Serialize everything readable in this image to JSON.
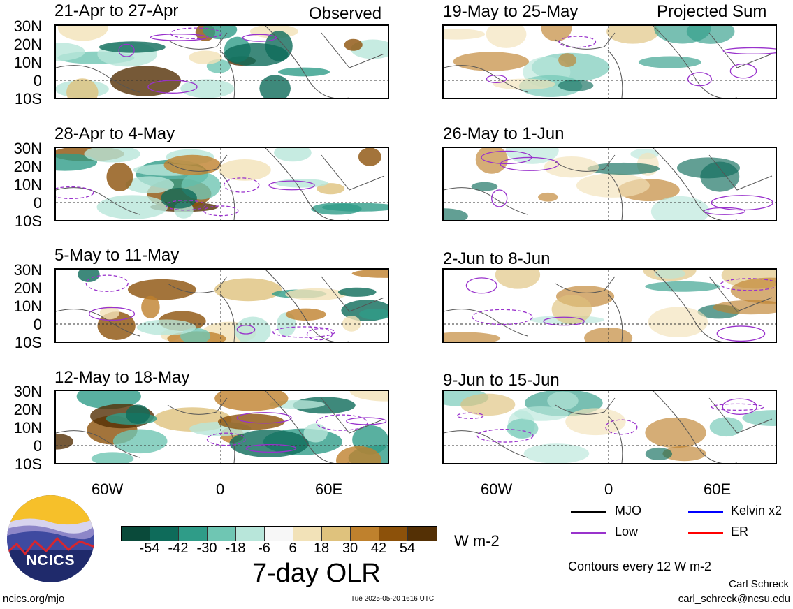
{
  "corner_left": "Observed",
  "corner_right": "Projected Sum",
  "left_panels": [
    "21-Apr to 27-Apr",
    "28-Apr to 4-May",
    "5-May to 11-May",
    "12-May to 18-May"
  ],
  "right_panels": [
    "19-May to 25-May",
    "26-May to 1-Jun",
    "2-Jun to 8-Jun",
    "9-Jun to 15-Jun"
  ],
  "lat_labels": [
    "30N",
    "20N",
    "10N",
    "0",
    "10S"
  ],
  "lon_labels": [
    "60W",
    "0",
    "60E"
  ],
  "colorbar": {
    "ticks": [
      "-54",
      "-42",
      "-30",
      "-18",
      "-6",
      "6",
      "18",
      "30",
      "42",
      "54"
    ],
    "colors": [
      "#0a4a3a",
      "#0e6b5a",
      "#2f9c88",
      "#6fc6b3",
      "#b8e6da",
      "#f7f7f7",
      "#f2e2b8",
      "#dfc27d",
      "#bf812d",
      "#8c510a",
      "#543005"
    ],
    "units": "W m-2",
    "title": "7-day OLR"
  },
  "legend": {
    "mjo": "MJO",
    "kelvin": "Kelvin x2",
    "low": "Low",
    "er": "ER",
    "colors": {
      "mjo": "#000000",
      "kelvin": "#0000ff",
      "low": "#9932cc",
      "er": "#ff0000"
    }
  },
  "contours_note": "Contours every 12 W m-2",
  "author": "Carl Schreck",
  "email": "carl_schreck@ncsu.edu",
  "logo_text": "NCICS",
  "site": "ncics.org/mjo",
  "timestamp": "Tue 2025-05-20 1616 UTC"
}
